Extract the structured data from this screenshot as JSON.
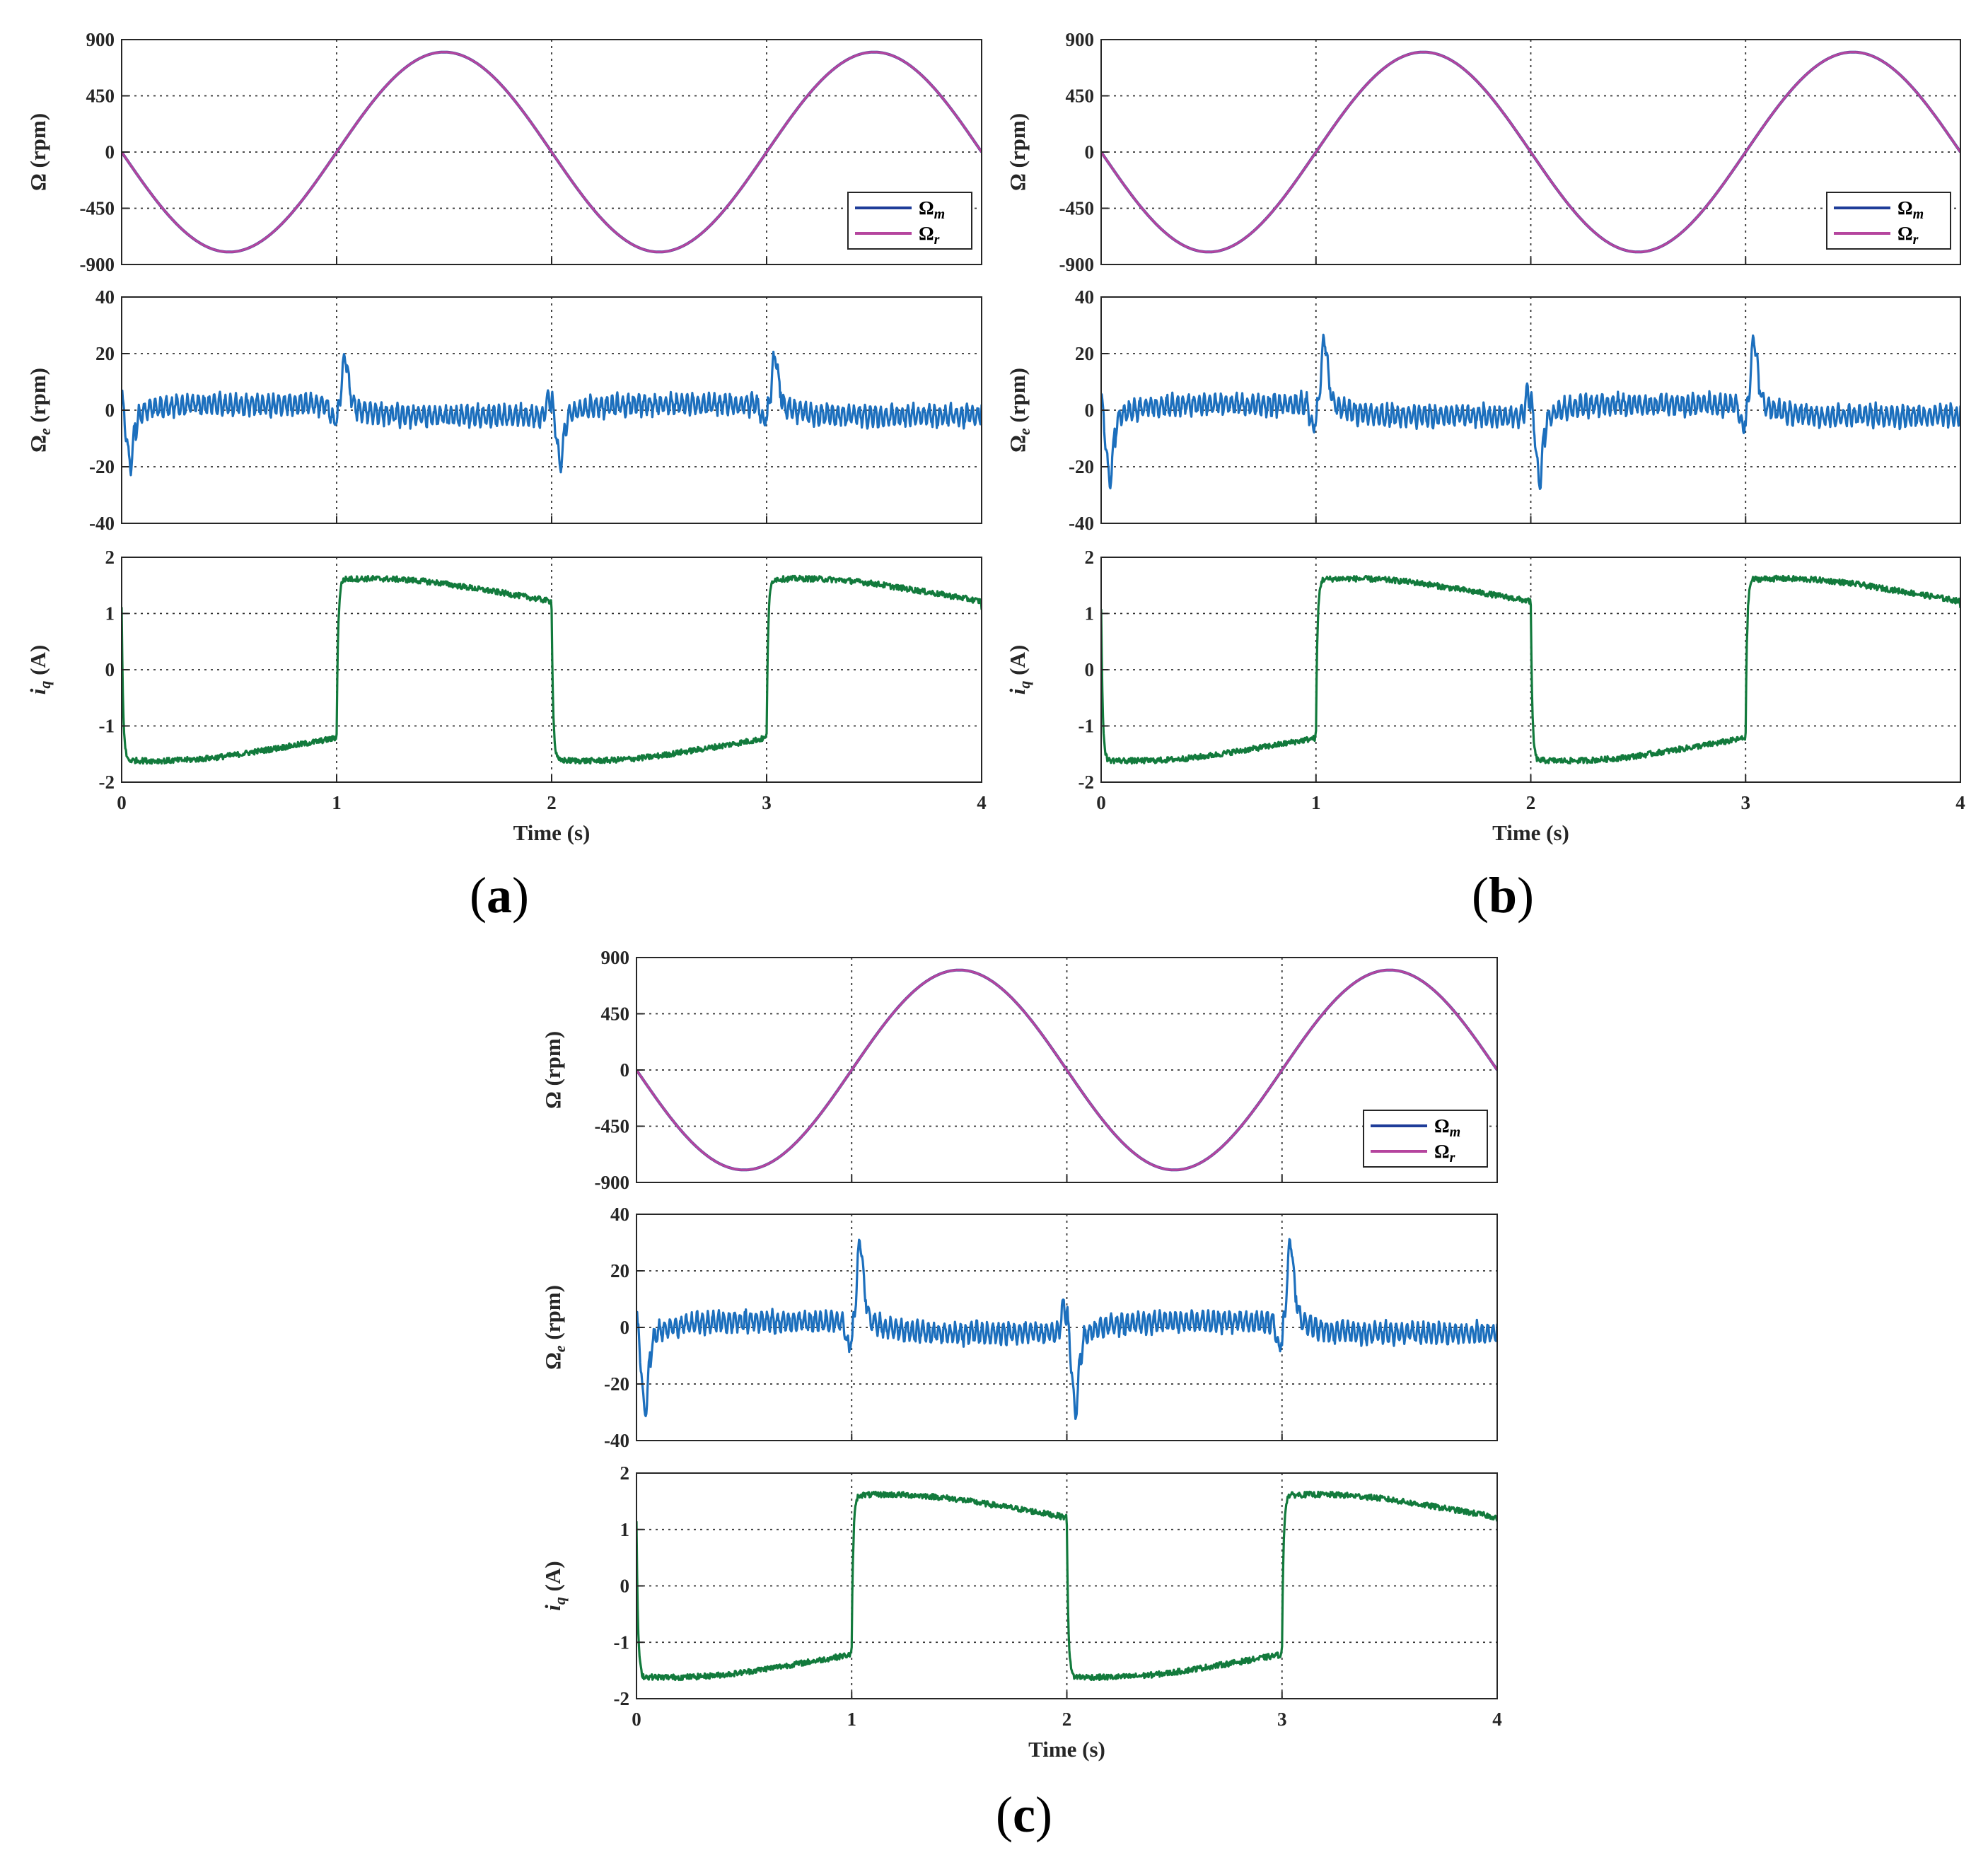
{
  "chart_data": [
    {
      "type": "line",
      "panel_label": "(a)",
      "xlabel": "Time (s)",
      "xlim": [
        0,
        4
      ],
      "xticks": [
        "0",
        "1",
        "2",
        "3",
        "4"
      ],
      "subplots": [
        {
          "id": "speed",
          "ylabel": "Ω (rpm)",
          "ylim": [
            -900,
            900
          ],
          "yticks": [
            "900",
            "450",
            "0",
            "-450",
            "-900"
          ],
          "legend": {
            "position": "bottom-right",
            "entries": [
              "Ωm",
              "Ωr"
            ]
          },
          "series": [
            {
              "name": "Ωm",
              "color": "#1f3d99",
              "model": "sine",
              "amplitude": 800,
              "period": 2,
              "sign": -1
            },
            {
              "name": "Ωr",
              "color": "#b5459e",
              "model": "sine",
              "amplitude": 800,
              "period": 2,
              "sign": -1
            }
          ]
        },
        {
          "id": "error",
          "ylabel": "Ωe (rpm)",
          "ylim": [
            -40,
            40
          ],
          "yticks": [
            "40",
            "20",
            "0",
            "-20",
            "-40"
          ],
          "series": [
            {
              "name": "Ωe",
              "color": "#1c6fbd",
              "model": "error",
              "peak": 21,
              "noise": 4,
              "transition_times": [
                0,
                1,
                2,
                3
              ],
              "transition_signs": [
                -1,
                1,
                -1,
                1
              ]
            }
          ]
        },
        {
          "id": "current",
          "ylabel": "iq (A)",
          "ylim": [
            -2,
            2
          ],
          "yticks": [
            "2",
            "1",
            "0",
            "-1",
            "-2"
          ],
          "series": [
            {
              "name": "iq",
              "color": "#127a3c",
              "model": "current",
              "start_level": 1.6,
              "end_level": 1.1,
              "noise": 0.05
            }
          ]
        }
      ]
    },
    {
      "type": "line",
      "panel_label": "(b)",
      "xlabel": "Time (s)",
      "xlim": [
        0,
        4
      ],
      "xticks": [
        "0",
        "1",
        "2",
        "3",
        "4"
      ],
      "subplots": [
        {
          "id": "speed",
          "ylabel": "Ω (rpm)",
          "ylim": [
            -900,
            900
          ],
          "yticks": [
            "900",
            "450",
            "0",
            "-450",
            "-900"
          ],
          "legend": {
            "position": "bottom-right",
            "entries": [
              "Ωm",
              "Ωr"
            ]
          },
          "series": [
            {
              "name": "Ωm",
              "color": "#1f3d99",
              "model": "sine",
              "amplitude": 800,
              "period": 2,
              "sign": -1
            },
            {
              "name": "Ωr",
              "color": "#b5459e",
              "model": "sine",
              "amplitude": 800,
              "period": 2,
              "sign": -1
            }
          ]
        },
        {
          "id": "error",
          "ylabel": "Ωe (rpm)",
          "ylim": [
            -40,
            40
          ],
          "yticks": [
            "40",
            "20",
            "0",
            "-20",
            "-40"
          ],
          "series": [
            {
              "name": "Ωe",
              "color": "#1c6fbd",
              "model": "error",
              "peak": 27,
              "noise": 4,
              "transition_times": [
                0,
                1,
                2,
                3
              ],
              "transition_signs": [
                -1,
                1,
                -1,
                1
              ]
            }
          ]
        },
        {
          "id": "current",
          "ylabel": "iq (A)",
          "ylim": [
            -2,
            2
          ],
          "yticks": [
            "2",
            "1",
            "0",
            "-1",
            "-2"
          ],
          "series": [
            {
              "name": "iq",
              "color": "#127a3c",
              "model": "current",
              "start_level": 1.6,
              "end_level": 1.1,
              "noise": 0.05
            }
          ]
        }
      ]
    },
    {
      "type": "line",
      "panel_label": "(c)",
      "xlabel": "Time (s)",
      "xlim": [
        0,
        4
      ],
      "xticks": [
        "0",
        "1",
        "2",
        "3",
        "4"
      ],
      "subplots": [
        {
          "id": "speed",
          "ylabel": "Ω (rpm)",
          "ylim": [
            -900,
            900
          ],
          "yticks": [
            "900",
            "450",
            "0",
            "-450",
            "-900"
          ],
          "legend": {
            "position": "bottom-right",
            "entries": [
              "Ωm",
              "Ωr"
            ]
          },
          "series": [
            {
              "name": "Ωm",
              "color": "#1f3d99",
              "model": "sine",
              "amplitude": 800,
              "period": 2,
              "sign": -1
            },
            {
              "name": "Ωr",
              "color": "#b5459e",
              "model": "sine",
              "amplitude": 800,
              "period": 2,
              "sign": -1
            }
          ]
        },
        {
          "id": "error",
          "ylabel": "Ωe (rpm)",
          "ylim": [
            -40,
            40
          ],
          "yticks": [
            "40",
            "20",
            "0",
            "-20",
            "-40"
          ],
          "series": [
            {
              "name": "Ωe",
              "color": "#1c6fbd",
              "model": "error",
              "peak": 32,
              "noise": 4,
              "transition_times": [
                0,
                1,
                2,
                3
              ],
              "transition_signs": [
                -1,
                1,
                -1,
                1
              ]
            }
          ]
        },
        {
          "id": "current",
          "ylabel": "iq (A)",
          "ylim": [
            -2,
            2
          ],
          "yticks": [
            "2",
            "1",
            "0",
            "-1",
            "-2"
          ],
          "series": [
            {
              "name": "iq",
              "color": "#127a3c",
              "model": "current",
              "start_level": 1.6,
              "end_level": 1.1,
              "noise": 0.05
            }
          ]
        }
      ]
    }
  ]
}
